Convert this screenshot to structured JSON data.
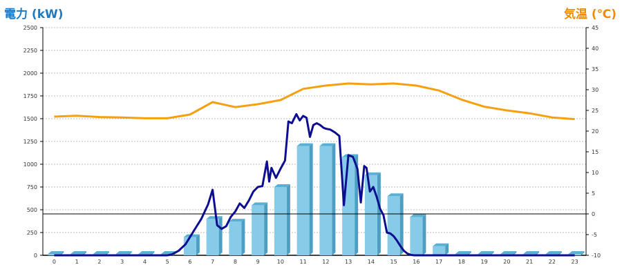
{
  "labels": {
    "left_unit": "電力 (kW)",
    "right_unit": "気温 (℃)"
  },
  "colors": {
    "bar_face": "#87cbe9",
    "bar_side": "#4c9fc2",
    "bar_top": "#5ab0d4",
    "power_line": "#0d0d8f",
    "temperature_line": "#f5a011",
    "grid": "#bbbbbb",
    "axis": "#000000"
  },
  "chart_data": {
    "type": "bar",
    "title": "",
    "xlabel": "",
    "ylabel": "電力 (kW)",
    "y2label": "気温 (℃)",
    "categories": [
      "0",
      "1",
      "2",
      "3",
      "4",
      "5",
      "6",
      "7",
      "8",
      "9",
      "10",
      "11",
      "12",
      "13",
      "14",
      "15",
      "16",
      "17",
      "18",
      "19",
      "20",
      "21",
      "22",
      "23"
    ],
    "ylim": [
      0,
      2500
    ],
    "y_ticks": [
      0,
      250,
      500,
      750,
      1000,
      1250,
      1500,
      1750,
      2000,
      2250,
      2500
    ],
    "y2lim": [
      -10,
      45
    ],
    "y2_ticks": [
      -10,
      -5,
      0,
      5,
      10,
      15,
      20,
      25,
      30,
      35,
      40,
      45
    ],
    "grid": true,
    "series": [
      {
        "name": "hourly_power",
        "kind": "bar",
        "axis": "left",
        "values": [
          0,
          0,
          0,
          0,
          0,
          0,
          200,
          400,
          370,
          550,
          750,
          1200,
          1200,
          1080,
          880,
          650,
          420,
          100,
          0,
          0,
          0,
          0,
          0,
          0
        ]
      },
      {
        "name": "power",
        "kind": "line",
        "axis": "left",
        "x": [
          0,
          5,
          5.2,
          5.5,
          5.8,
          6,
          6.2,
          6.5,
          6.8,
          7,
          7.2,
          7.4,
          7.6,
          7.8,
          8,
          8.2,
          8.4,
          8.6,
          8.8,
          9,
          9.2,
          9.4,
          9.5,
          9.6,
          9.8,
          10,
          10.2,
          10.35,
          10.5,
          10.7,
          10.85,
          11,
          11.15,
          11.3,
          11.45,
          11.6,
          11.75,
          11.9,
          12,
          12.2,
          12.4,
          12.6,
          12.8,
          13,
          13.2,
          13.4,
          13.55,
          13.7,
          13.8,
          13.95,
          14.1,
          14.25,
          14.4,
          14.55,
          14.7,
          14.85,
          15,
          15.15,
          15.3,
          15.45,
          15.6,
          15.75,
          15.9,
          16,
          16.2,
          16.4,
          16.6,
          16.8,
          17,
          17.2,
          17.4,
          17.6,
          17.8,
          18,
          23
        ],
        "values": [
          0,
          0,
          10,
          50,
          120,
          200,
          280,
          400,
          560,
          720,
          330,
          290,
          320,
          420,
          480,
          570,
          520,
          600,
          700,
          750,
          760,
          1030,
          810,
          960,
          850,
          950,
          1040,
          1470,
          1450,
          1550,
          1480,
          1530,
          1510,
          1300,
          1430,
          1450,
          1430,
          1400,
          1390,
          1380,
          1350,
          1310,
          550,
          1100,
          1080,
          950,
          580,
          980,
          960,
          700,
          750,
          640,
          510,
          440,
          250,
          240,
          210,
          160,
          100,
          50,
          20,
          5,
          0,
          0,
          0,
          0,
          0,
          0,
          0,
          0,
          0,
          0,
          0,
          0,
          0
        ]
      },
      {
        "name": "temperature",
        "kind": "line",
        "axis": "right",
        "x": [
          0,
          1,
          2,
          3,
          4,
          5,
          6,
          7,
          8,
          9,
          10,
          11,
          12,
          13,
          14,
          15,
          16,
          17,
          18,
          19,
          20,
          21,
          22,
          23
        ],
        "values": [
          23.5,
          23.7,
          23.4,
          23.3,
          23.1,
          23.1,
          24.0,
          27.0,
          25.8,
          26.5,
          27.5,
          30.2,
          31.0,
          31.5,
          31.3,
          31.5,
          31.0,
          29.8,
          27.6,
          25.9,
          25.0,
          24.3,
          23.3,
          22.9
        ]
      }
    ]
  }
}
